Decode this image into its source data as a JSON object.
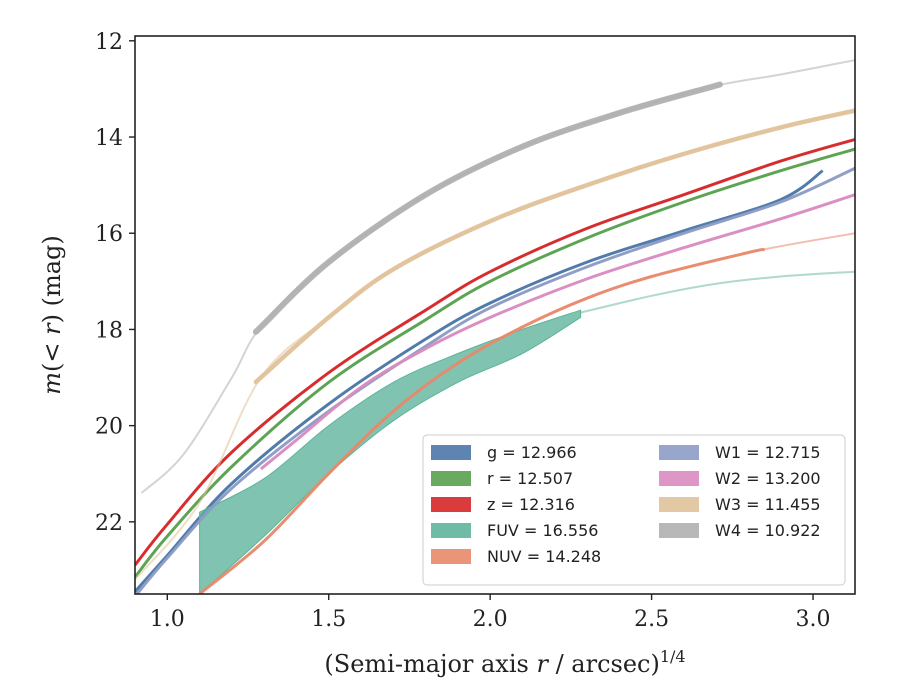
{
  "chart_data": {
    "type": "line",
    "title": "",
    "xlabel": "(Semi-major axis r / arcsec)",
    "xlabel_superscript": "1/4",
    "ylabel": "m(< r) (mag)",
    "xlim": [
      0.9,
      3.13
    ],
    "ylim": [
      23.5,
      11.9
    ],
    "y_inverted": true,
    "grid": false,
    "legend_position": "lower-right",
    "legend_columns": 2,
    "x_ticks": [
      "1.0",
      "1.5",
      "2.0",
      "2.5",
      "3.0"
    ],
    "y_ticks": [
      "12",
      "14",
      "16",
      "18",
      "20",
      "22"
    ],
    "series": [
      {
        "name": "g",
        "label": "g = 12.966",
        "color": "#4c78a8",
        "points": [
          [
            0.9,
            23.45
          ],
          [
            1.0,
            22.7
          ],
          [
            1.2,
            21.2
          ],
          [
            1.5,
            19.55
          ],
          [
            1.8,
            18.2
          ],
          [
            2.0,
            17.45
          ],
          [
            2.3,
            16.6
          ],
          [
            2.6,
            15.95
          ],
          [
            2.9,
            15.3
          ],
          [
            3.03,
            14.7
          ]
        ],
        "band_end": 3.03
      },
      {
        "name": "r",
        "label": "r = 12.507",
        "color": "#59a14f",
        "points": [
          [
            0.9,
            23.15
          ],
          [
            1.0,
            22.3
          ],
          [
            1.2,
            20.85
          ],
          [
            1.5,
            19.1
          ],
          [
            1.8,
            17.8
          ],
          [
            2.0,
            17.0
          ],
          [
            2.3,
            16.1
          ],
          [
            2.6,
            15.35
          ],
          [
            2.9,
            14.7
          ],
          [
            3.13,
            14.25
          ]
        ],
        "band_end": 3.13
      },
      {
        "name": "z",
        "label": "z = 12.316",
        "color": "#d62728",
        "points": [
          [
            0.9,
            22.9
          ],
          [
            1.0,
            22.05
          ],
          [
            1.2,
            20.55
          ],
          [
            1.5,
            18.9
          ],
          [
            1.8,
            17.6
          ],
          [
            2.0,
            16.8
          ],
          [
            2.3,
            15.9
          ],
          [
            2.6,
            15.2
          ],
          [
            2.9,
            14.5
          ],
          [
            3.13,
            14.05
          ]
        ],
        "band_end": 3.13
      },
      {
        "name": "FUV",
        "label": "FUV = 16.556",
        "color": "#5fb49c",
        "upper": [
          [
            1.1,
            21.8
          ],
          [
            1.3,
            21.1
          ],
          [
            1.5,
            20.0
          ],
          [
            1.7,
            19.1
          ],
          [
            1.9,
            18.5
          ],
          [
            2.1,
            18.0
          ],
          [
            2.28,
            17.6
          ]
        ],
        "lower": [
          [
            1.1,
            23.5
          ],
          [
            1.3,
            22.3
          ],
          [
            1.5,
            21.0
          ],
          [
            1.7,
            19.9
          ],
          [
            1.9,
            19.1
          ],
          [
            2.1,
            18.5
          ],
          [
            2.28,
            17.75
          ]
        ],
        "tail": [
          [
            2.28,
            17.65
          ],
          [
            2.5,
            17.3
          ],
          [
            2.7,
            17.05
          ],
          [
            2.9,
            16.9
          ],
          [
            3.13,
            16.8
          ]
        ]
      },
      {
        "name": "NUV",
        "label": "NUV = 14.248",
        "color": "#e8896b",
        "points": [
          [
            1.1,
            23.5
          ],
          [
            1.3,
            22.4
          ],
          [
            1.5,
            21.0
          ],
          [
            1.7,
            19.7
          ],
          [
            1.9,
            18.7
          ],
          [
            2.1,
            17.95
          ],
          [
            2.3,
            17.35
          ],
          [
            2.5,
            16.9
          ],
          [
            2.8,
            16.4
          ],
          [
            3.13,
            16.0
          ]
        ],
        "band_end": 2.85
      },
      {
        "name": "W1",
        "label": "W1 = 12.715",
        "color": "#8c9cc4",
        "points": [
          [
            0.9,
            23.55
          ],
          [
            1.0,
            22.75
          ],
          [
            1.2,
            21.3
          ],
          [
            1.5,
            19.7
          ],
          [
            1.8,
            18.35
          ],
          [
            2.0,
            17.55
          ],
          [
            2.3,
            16.7
          ],
          [
            2.6,
            16.0
          ],
          [
            2.9,
            15.35
          ],
          [
            3.13,
            14.65
          ]
        ],
        "band_end": 3.13
      },
      {
        "name": "W2",
        "label": "W2 = 13.200",
        "color": "#d98cc0",
        "points": [
          [
            1.29,
            20.9
          ],
          [
            1.4,
            20.3
          ],
          [
            1.6,
            19.2
          ],
          [
            1.8,
            18.4
          ],
          [
            2.0,
            17.75
          ],
          [
            2.3,
            16.95
          ],
          [
            2.6,
            16.3
          ],
          [
            2.9,
            15.7
          ],
          [
            3.13,
            15.2
          ]
        ],
        "band_end": 3.13
      },
      {
        "name": "W3",
        "label": "W3 = 11.455",
        "color": "#e0c29a",
        "points": [
          [
            0.9,
            23.2
          ],
          [
            1.1,
            21.6
          ],
          [
            1.29,
            19.0
          ],
          [
            1.5,
            17.75
          ],
          [
            1.7,
            16.75
          ],
          [
            2.0,
            15.75
          ],
          [
            2.3,
            15.0
          ],
          [
            2.6,
            14.35
          ],
          [
            2.9,
            13.8
          ],
          [
            3.13,
            13.45
          ]
        ],
        "band_start": 1.29,
        "band_end": 3.13
      },
      {
        "name": "W4",
        "label": "W4 = 10.922",
        "color": "#b0b0b0",
        "points": [
          [
            0.92,
            21.4
          ],
          [
            1.05,
            20.6
          ],
          [
            1.2,
            19.0
          ],
          [
            1.29,
            17.95
          ],
          [
            1.5,
            16.6
          ],
          [
            1.8,
            15.2
          ],
          [
            2.1,
            14.2
          ],
          [
            2.4,
            13.5
          ],
          [
            2.69,
            12.95
          ],
          [
            2.9,
            12.7
          ],
          [
            3.13,
            12.4
          ]
        ],
        "band_start": 1.29,
        "band_end": 2.69
      }
    ]
  }
}
